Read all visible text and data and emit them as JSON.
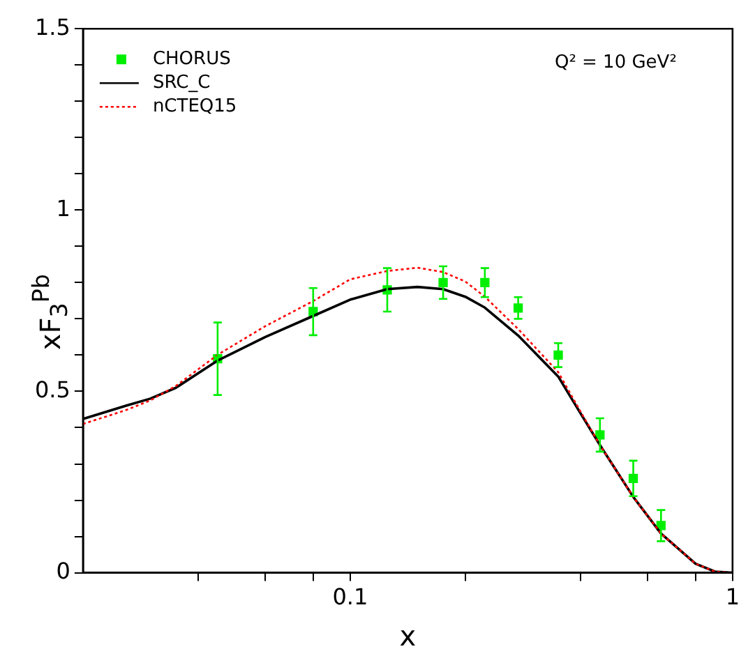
{
  "chart_data": {
    "type": "line",
    "xlabel": "x",
    "ylabel": "xF$_{3}$$^{Pb}$",
    "annotations": [
      "Q² = 10 GeV²"
    ],
    "log": "x",
    "grid": false,
    "legend": "top left",
    "xlim": [
      0.02,
      1
    ],
    "xticks": [
      {
        "value": 0.04,
        "label": null
      },
      {
        "value": 0.06,
        "label": null
      },
      {
        "value": 0.08,
        "label": null
      },
      0.1,
      {
        "value": 0.2,
        "label": null
      },
      {
        "value": 0.4,
        "label": null
      },
      {
        "value": 0.6,
        "label": null
      },
      {
        "value": 0.8,
        "label": null
      },
      1
    ],
    "ylim": [
      0,
      1.5
    ],
    "yticks": [
      0,
      {
        "value": 0.1,
        "label": null
      },
      {
        "value": 0.2,
        "label": null
      },
      {
        "value": 0.3,
        "label": null
      },
      {
        "value": 0.4,
        "label": null
      },
      0.5,
      {
        "value": 0.6,
        "label": null
      },
      {
        "value": 0.7,
        "label": null
      },
      {
        "value": 0.8,
        "label": null
      },
      {
        "value": 0.9,
        "label": null
      },
      1,
      {
        "value": 1.1,
        "label": null
      },
      {
        "value": 1.2,
        "label": null
      },
      {
        "value": 1.3,
        "label": null
      },
      {
        "value": 1.4,
        "label": null
      },
      1.5
    ],
    "series": [
      {
        "name": "CHORUS",
        "type": "scatter",
        "marker": "square",
        "color": "#00ee00",
        "x": [
          0.045,
          0.08,
          0.125,
          0.175,
          0.225,
          0.275,
          0.35,
          0.45,
          0.55,
          0.65
        ],
        "values": [
          0.59,
          0.72,
          0.78,
          0.8,
          0.8,
          0.73,
          0.6,
          0.38,
          0.26,
          0.13
        ],
        "errors": [
          0.1,
          0.065,
          0.06,
          0.045,
          0.04,
          0.03,
          0.033,
          0.046,
          0.049,
          0.043
        ]
      },
      {
        "name": "SRC_C",
        "marker": "none",
        "line_style": "solid",
        "color": "#000000",
        "x": [
          0.02,
          0.026,
          0.03,
          0.035,
          0.045,
          0.06,
          0.08,
          0.1,
          0.125,
          0.15,
          0.175,
          0.2,
          0.225,
          0.275,
          0.35,
          0.4,
          0.45,
          0.55,
          0.65,
          0.8,
          0.9,
          1
        ],
        "values": [
          0.424,
          0.461,
          0.48,
          0.51,
          0.585,
          0.65,
          0.708,
          0.753,
          0.782,
          0.788,
          0.782,
          0.761,
          0.731,
          0.654,
          0.541,
          0.44,
          0.352,
          0.209,
          0.108,
          0.025,
          0.003,
          0
        ]
      },
      {
        "name": "nCTEQ15",
        "marker": "none",
        "line_style": "dotted",
        "color": "#ff0000",
        "x": [
          0.02,
          0.026,
          0.03,
          0.035,
          0.045,
          0.06,
          0.08,
          0.1,
          0.125,
          0.15,
          0.175,
          0.2,
          0.225,
          0.275,
          0.35,
          0.4,
          0.45,
          0.55,
          0.65,
          0.8,
          0.9,
          1
        ],
        "values": [
          0.41,
          0.449,
          0.475,
          0.515,
          0.601,
          0.68,
          0.749,
          0.809,
          0.832,
          0.841,
          0.829,
          0.803,
          0.761,
          0.672,
          0.553,
          0.445,
          0.352,
          0.209,
          0.108,
          0.025,
          0.003,
          0
        ]
      }
    ]
  }
}
